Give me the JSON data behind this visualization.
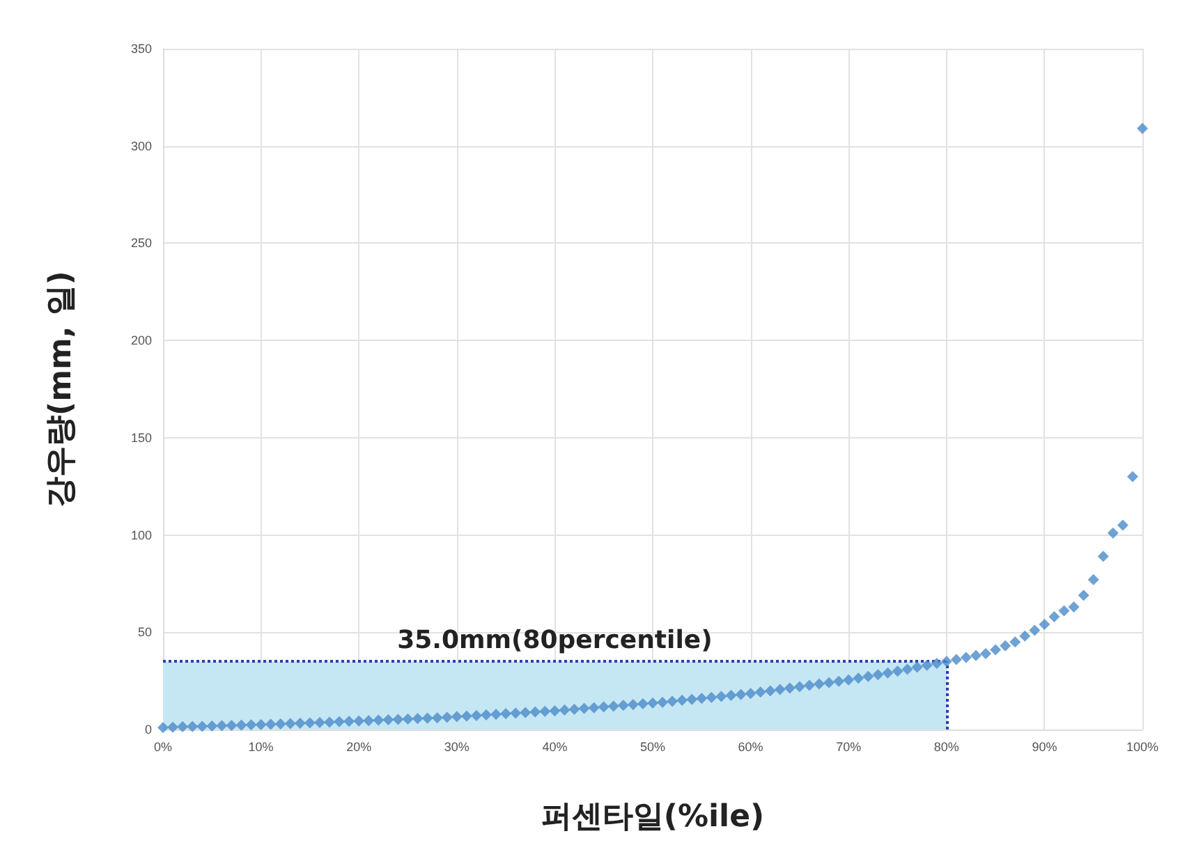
{
  "chart_data": {
    "type": "scatter",
    "xlabel": "퍼센타일(%ile)",
    "ylabel": "강우량(mm, 일)",
    "x": [
      0,
      1,
      2,
      3,
      4,
      5,
      6,
      7,
      8,
      9,
      10,
      11,
      12,
      13,
      14,
      15,
      16,
      17,
      18,
      19,
      20,
      21,
      22,
      23,
      24,
      25,
      26,
      27,
      28,
      29,
      30,
      31,
      32,
      33,
      34,
      35,
      36,
      37,
      38,
      39,
      40,
      41,
      42,
      43,
      44,
      45,
      46,
      47,
      48,
      49,
      50,
      51,
      52,
      53,
      54,
      55,
      56,
      57,
      58,
      59,
      60,
      61,
      62,
      63,
      64,
      65,
      66,
      67,
      68,
      69,
      70,
      71,
      72,
      73,
      74,
      75,
      76,
      77,
      78,
      79,
      80,
      81,
      82,
      83,
      84,
      85,
      86,
      87,
      88,
      89,
      90,
      91,
      92,
      93,
      94,
      95,
      96,
      97,
      98,
      99,
      100
    ],
    "series": [
      {
        "color": "#4a8bc9",
        "values": [
          1,
          1.2,
          1.4,
          1.5,
          1.6,
          1.8,
          2,
          2.1,
          2.2,
          2.4,
          2.5,
          2.7,
          2.9,
          3,
          3.2,
          3.4,
          3.6,
          3.8,
          4,
          4.2,
          4.4,
          4.6,
          4.8,
          5,
          5.2,
          5.4,
          5.6,
          5.8,
          6,
          6.3,
          6.6,
          6.9,
          7.2,
          7.5,
          7.8,
          8.1,
          8.4,
          8.7,
          9,
          9.3,
          9.6,
          10,
          10.4,
          10.8,
          11.2,
          11.6,
          12,
          12.4,
          12.8,
          13.2,
          13.6,
          14,
          14.5,
          15,
          15.5,
          16,
          16.5,
          17,
          17.5,
          18,
          18.5,
          19.2,
          19.9,
          20.6,
          21.3,
          22,
          22.7,
          23.4,
          24.1,
          24.8,
          25.5,
          26.4,
          27.3,
          28.2,
          29.1,
          30,
          31,
          32,
          33,
          34,
          35,
          36,
          37,
          38,
          39,
          41,
          43,
          45,
          48,
          51,
          54,
          58,
          61,
          63,
          69,
          77,
          89,
          101,
          105,
          130,
          309
        ]
      }
    ],
    "xlim": [
      0,
      100
    ],
    "xticks": [
      {
        "value": 0,
        "label": "0%"
      },
      {
        "value": 10,
        "label": "10%"
      },
      {
        "value": 20,
        "label": "20%"
      },
      {
        "value": 30,
        "label": "30%"
      },
      {
        "value": 40,
        "label": "40%"
      },
      {
        "value": 50,
        "label": "50%"
      },
      {
        "value": 60,
        "label": "60%"
      },
      {
        "value": 70,
        "label": "70%"
      },
      {
        "value": 80,
        "label": "80%"
      },
      {
        "value": 90,
        "label": "90%"
      },
      {
        "value": 100,
        "label": "100%"
      }
    ],
    "ylim": [
      0,
      350
    ],
    "yticks": [
      0,
      50,
      100,
      150,
      200,
      250,
      300,
      350
    ],
    "ref_lines": [
      {
        "axis": "y",
        "value": 35,
        "label": "35.0mm(80percentile)",
        "color": "#2a3fb0",
        "line_style": "dotted"
      },
      {
        "axis": "x",
        "value": 80,
        "color": "#2a3fb0",
        "line_style": "dotted"
      }
    ],
    "bands": [
      {
        "axis": "x",
        "from": 0,
        "to": 80,
        "color": "#c5e6f3"
      }
    ],
    "grid": true,
    "marker": "diamond"
  }
}
